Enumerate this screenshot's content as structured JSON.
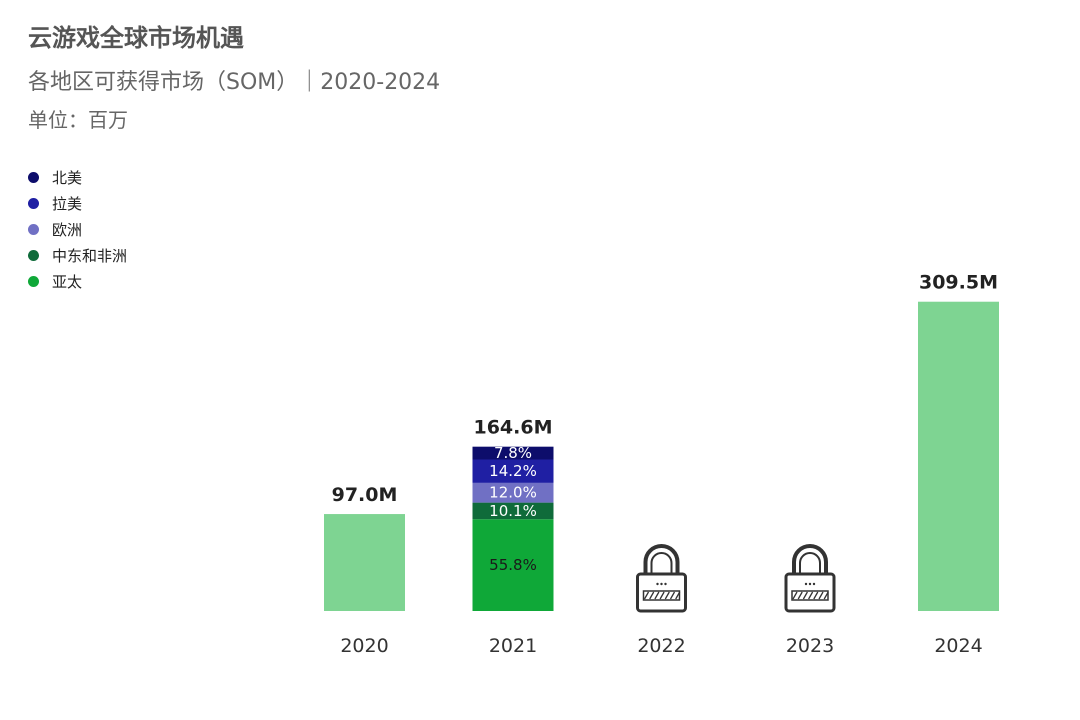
{
  "header": {
    "title": "云游戏全球市场机遇",
    "subtitle": "各地区可获得市场（SOM）｜2020-2024",
    "unit": "单位：百万"
  },
  "chart_data": {
    "type": "bar",
    "stacked": true,
    "categories": [
      "2020",
      "2021",
      "2022",
      "2023",
      "2024"
    ],
    "totals": [
      97.0,
      164.6,
      null,
      null,
      309.5
    ],
    "total_labels": [
      "97.0M",
      "164.6M",
      "",
      "",
      "309.5M"
    ],
    "locked_categories": [
      "2022",
      "2023"
    ],
    "series": [
      {
        "name": "北美",
        "color": "#0d0d6b",
        "shares": [
          null,
          7.8,
          null,
          null,
          null
        ],
        "labels": [
          "",
          "7.8%",
          "",
          "",
          ""
        ]
      },
      {
        "name": "拉美",
        "color": "#1f1fa3",
        "shares": [
          null,
          14.2,
          null,
          null,
          null
        ],
        "labels": [
          "",
          "14.2%",
          "",
          "",
          ""
        ]
      },
      {
        "name": "欧洲",
        "color": "#7070c4",
        "shares": [
          null,
          12.0,
          null,
          null,
          null
        ],
        "labels": [
          "",
          "12.0%",
          "",
          "",
          ""
        ]
      },
      {
        "name": "中东和非洲",
        "color": "#0f6b3a",
        "shares": [
          null,
          10.1,
          null,
          null,
          null
        ],
        "labels": [
          "",
          "10.1%",
          "",
          "",
          ""
        ]
      },
      {
        "name": "亚太",
        "color": "#0fa838",
        "shares": [
          null,
          55.8,
          null,
          null,
          null
        ],
        "labels": [
          "",
          "55.8%",
          "",
          "",
          ""
        ]
      }
    ],
    "undivided_bar_color": "#7ed492",
    "ylim": [
      0,
      330
    ],
    "grid": false,
    "legend_position": "top-left"
  }
}
